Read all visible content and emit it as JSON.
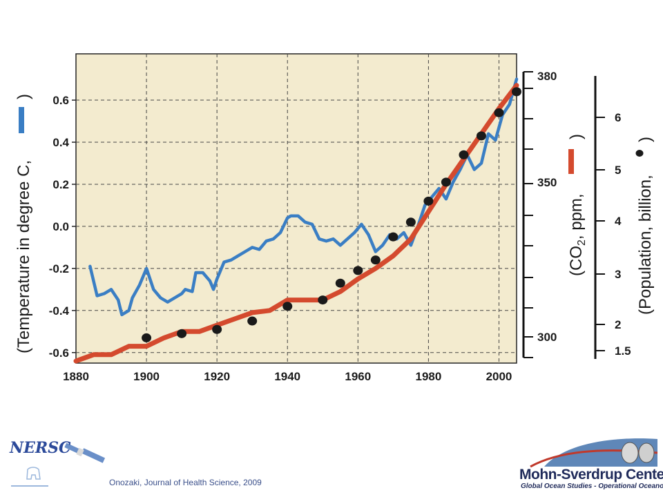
{
  "chart_data": {
    "type": "line",
    "xlim": [
      1880,
      2005
    ],
    "x_ticks": [
      "1880",
      "1900",
      "1920",
      "1940",
      "1960",
      "1980",
      "2000"
    ],
    "background": "#f3ebcf",
    "grid": true,
    "y_left": {
      "label": "(Temperature in degree C,",
      "label_close": ")",
      "ylim": [
        -0.65,
        0.82
      ],
      "ticks": [
        "0.6",
        "0.4",
        "0.2",
        "0.0",
        "-0.2",
        "-0.4",
        "-0.6"
      ]
    },
    "y_co2": {
      "label": "(CO",
      "label_sub": "2",
      "label_rest": ", ppm,",
      "label_close": ")",
      "ticks": [
        "380",
        "350",
        "300"
      ]
    },
    "y_pop": {
      "label": "(Population, billion,",
      "label_close": ")",
      "ticks": [
        "6",
        "5",
        "4",
        "3",
        "2",
        "1.5"
      ]
    },
    "series": [
      {
        "key": "temperature",
        "color": "#3a7ec4",
        "x": [
          1884,
          1886,
          1888,
          1890,
          1892,
          1893,
          1895,
          1896,
          1898,
          1900,
          1902,
          1904,
          1906,
          1908,
          1910,
          1911,
          1913,
          1914,
          1916,
          1918,
          1919,
          1920,
          1922,
          1924,
          1926,
          1928,
          1930,
          1932,
          1934,
          1936,
          1938,
          1940,
          1941,
          1943,
          1945,
          1947,
          1949,
          1951,
          1953,
          1955,
          1957,
          1959,
          1961,
          1963,
          1965,
          1967,
          1969,
          1971,
          1973,
          1975,
          1977,
          1979,
          1981,
          1983,
          1985,
          1987,
          1989,
          1991,
          1993,
          1995,
          1997,
          1999,
          2001,
          2003,
          2005
        ],
        "y": [
          -0.19,
          -0.33,
          -0.32,
          -0.3,
          -0.35,
          -0.42,
          -0.4,
          -0.34,
          -0.28,
          -0.2,
          -0.3,
          -0.34,
          -0.36,
          -0.34,
          -0.32,
          -0.3,
          -0.31,
          -0.22,
          -0.22,
          -0.26,
          -0.3,
          -0.25,
          -0.17,
          -0.16,
          -0.14,
          -0.12,
          -0.1,
          -0.11,
          -0.07,
          -0.06,
          -0.03,
          0.04,
          0.05,
          0.05,
          0.02,
          0.01,
          -0.06,
          -0.07,
          -0.06,
          -0.09,
          -0.06,
          -0.03,
          0.01,
          -0.04,
          -0.12,
          -0.09,
          -0.04,
          -0.06,
          -0.03,
          -0.09,
          0.0,
          0.1,
          0.14,
          0.18,
          0.13,
          0.21,
          0.27,
          0.34,
          0.27,
          0.3,
          0.44,
          0.41,
          0.53,
          0.58,
          0.7
        ]
      },
      {
        "key": "co2",
        "color": "#d44a2e",
        "x": [
          1880,
          1885,
          1890,
          1895,
          1900,
          1905,
          1910,
          1915,
          1920,
          1925,
          1930,
          1935,
          1940,
          1945,
          1950,
          1955,
          1960,
          1965,
          1970,
          1975,
          1980,
          1985,
          1990,
          1995,
          2000,
          2005
        ],
        "y": [
          -0.64,
          -0.61,
          -0.61,
          -0.57,
          -0.57,
          -0.53,
          -0.5,
          -0.5,
          -0.47,
          -0.44,
          -0.41,
          -0.4,
          -0.35,
          -0.35,
          -0.35,
          -0.31,
          -0.25,
          -0.2,
          -0.14,
          -0.06,
          0.07,
          0.2,
          0.32,
          0.44,
          0.56,
          0.67
        ]
      },
      {
        "key": "population",
        "color": "#1a1a1a",
        "x": [
          1900,
          1910,
          1920,
          1930,
          1940,
          1950,
          1955,
          1960,
          1965,
          1970,
          1975,
          1980,
          1985,
          1990,
          1995,
          2000,
          2005
        ],
        "y": [
          -0.53,
          -0.51,
          -0.49,
          -0.45,
          -0.38,
          -0.35,
          -0.27,
          -0.21,
          -0.16,
          -0.05,
          0.02,
          0.12,
          0.21,
          0.34,
          0.43,
          0.54,
          0.64
        ]
      }
    ]
  },
  "citation": "Onozaki, Journal of Health Science, 2009",
  "logos": {
    "left": "NERSC",
    "right_name": "Mohn-Sverdrup Center",
    "right_sub": "Global Ocean Studies - Operational Oceanography"
  }
}
